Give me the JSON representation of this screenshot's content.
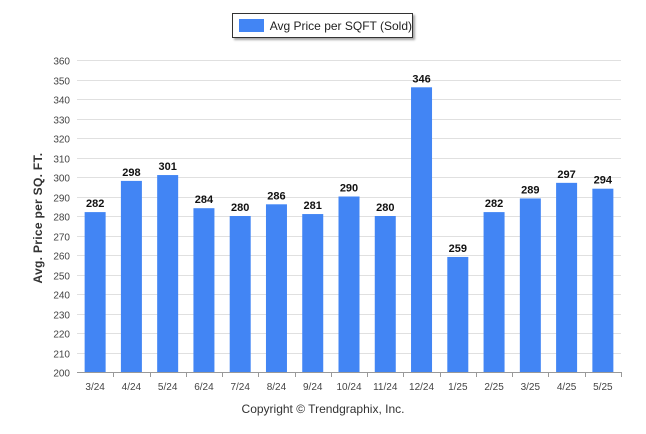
{
  "legend": {
    "label": "Avg Price per SQFT (Sold)"
  },
  "credit": "Copyright © Trendgraphix, Inc.",
  "colors": {
    "bar": "#4285f4",
    "grid": "#e0e0e0",
    "axis": "#999999"
  },
  "chart_data": {
    "type": "bar",
    "title": "",
    "xlabel": "",
    "ylabel": "Avg. Price per SQ. FT.",
    "categories": [
      "3/24",
      "4/24",
      "5/24",
      "6/24",
      "7/24",
      "8/24",
      "9/24",
      "10/24",
      "11/24",
      "12/24",
      "1/25",
      "2/25",
      "3/25",
      "4/25",
      "5/25"
    ],
    "series": [
      {
        "name": "Avg Price per SQFT (Sold)",
        "values": [
          282,
          298,
          301,
          284,
          280,
          286,
          281,
          290,
          280,
          346,
          259,
          282,
          289,
          297,
          294
        ]
      }
    ],
    "ylim": [
      200,
      360
    ],
    "yticks": [
      200,
      210,
      220,
      230,
      240,
      250,
      260,
      270,
      280,
      290,
      300,
      310,
      320,
      330,
      340,
      350,
      360
    ],
    "data_labels": true,
    "grid": true,
    "legend_position": "top-center"
  }
}
